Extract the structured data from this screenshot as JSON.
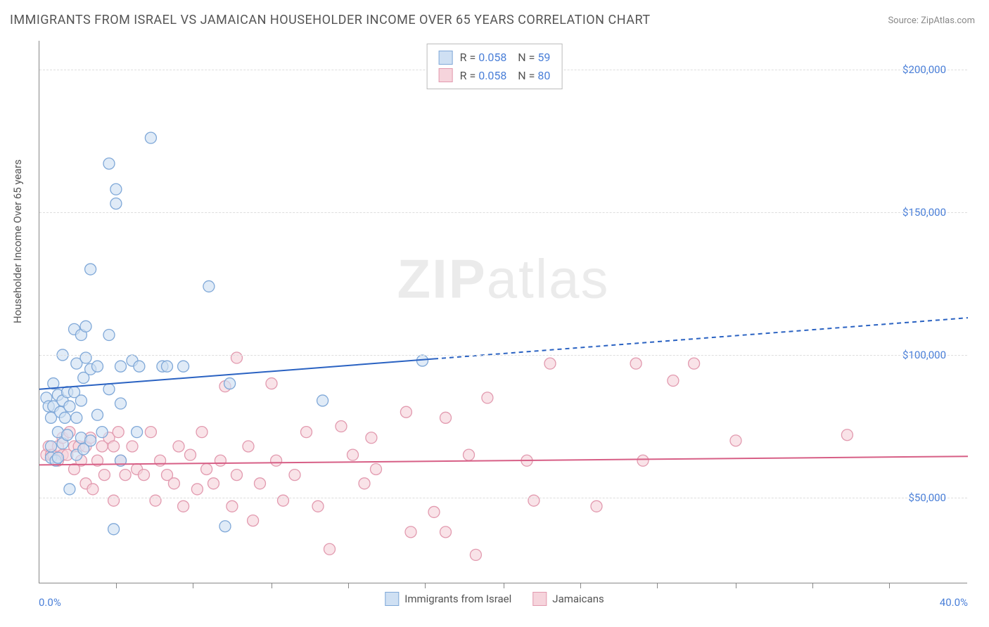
{
  "title": "IMMIGRANTS FROM ISRAEL VS JAMAICAN HOUSEHOLDER INCOME OVER 65 YEARS CORRELATION CHART",
  "source_label": "Source:",
  "source_name": "ZipAtlas.com",
  "ylabel": "Householder Income Over 65 years",
  "watermark_bold": "ZIP",
  "watermark_rest": "atlas",
  "chart": {
    "type": "scatter",
    "xlim": [
      0,
      40
    ],
    "ylim": [
      20000,
      210000
    ],
    "x_unit": "%",
    "y_prefix": "$",
    "y_ticks": [
      50000,
      100000,
      150000,
      200000
    ],
    "y_tick_labels": [
      "$50,000",
      "$100,000",
      "$150,000",
      "$200,000"
    ],
    "x_ticks_minor": [
      3.3,
      6.6,
      10,
      13.3,
      16.6,
      20,
      23.3,
      26.6,
      30,
      33.3,
      36.6
    ],
    "x_min_label": "0.0%",
    "x_max_label": "40.0%",
    "gridline_color": "#dddddd",
    "axis_color": "#888888",
    "tick_label_color": "#4a7fd8",
    "background_color": "#ffffff",
    "marker_radius": 8,
    "marker_stroke_width": 1.3,
    "series": [
      {
        "name": "Immigrants from Israel",
        "fill": "#cfe0f3",
        "stroke": "#7fa8d8",
        "fill_opacity": 0.65,
        "R": "0.058",
        "N": "59",
        "trend": {
          "y_at_x0": 88000,
          "y_at_x40": 113000,
          "solid_until_x": 17,
          "color": "#2a62c2",
          "width": 2
        },
        "points": [
          [
            0.3,
            85000
          ],
          [
            0.4,
            82000
          ],
          [
            0.5,
            64000
          ],
          [
            0.5,
            78000
          ],
          [
            0.5,
            68000
          ],
          [
            0.6,
            90000
          ],
          [
            0.6,
            82000
          ],
          [
            0.7,
            63000
          ],
          [
            0.8,
            86000
          ],
          [
            0.8,
            73000
          ],
          [
            0.8,
            64000
          ],
          [
            0.9,
            80000
          ],
          [
            1.0,
            84000
          ],
          [
            1.0,
            100000
          ],
          [
            1.0,
            69000
          ],
          [
            1.1,
            78000
          ],
          [
            1.2,
            87000
          ],
          [
            1.2,
            72000
          ],
          [
            1.3,
            53000
          ],
          [
            1.3,
            82000
          ],
          [
            1.5,
            87000
          ],
          [
            1.5,
            109000
          ],
          [
            1.6,
            65000
          ],
          [
            1.6,
            97000
          ],
          [
            1.6,
            78000
          ],
          [
            1.8,
            71000
          ],
          [
            1.8,
            107000
          ],
          [
            1.8,
            84000
          ],
          [
            1.9,
            92000
          ],
          [
            1.9,
            67000
          ],
          [
            2.0,
            110000
          ],
          [
            2.0,
            99000
          ],
          [
            2.2,
            95000
          ],
          [
            2.2,
            70000
          ],
          [
            2.2,
            130000
          ],
          [
            2.5,
            96000
          ],
          [
            2.5,
            79000
          ],
          [
            2.7,
            73000
          ],
          [
            3.0,
            88000
          ],
          [
            3.0,
            107000
          ],
          [
            3.0,
            167000
          ],
          [
            3.2,
            39000
          ],
          [
            3.3,
            158000
          ],
          [
            3.3,
            153000
          ],
          [
            3.5,
            96000
          ],
          [
            3.5,
            63000
          ],
          [
            3.5,
            83000
          ],
          [
            4.0,
            98000
          ],
          [
            4.2,
            73000
          ],
          [
            4.3,
            96000
          ],
          [
            4.8,
            176000
          ],
          [
            5.3,
            96000
          ],
          [
            5.5,
            96000
          ],
          [
            6.2,
            96000
          ],
          [
            7.3,
            124000
          ],
          [
            8.0,
            40000
          ],
          [
            8.2,
            90000
          ],
          [
            12.2,
            84000
          ],
          [
            16.5,
            98000
          ]
        ]
      },
      {
        "name": "Jamaicans",
        "fill": "#f6d4dc",
        "stroke": "#e29aaf",
        "fill_opacity": 0.65,
        "R": "0.058",
        "N": "80",
        "trend": {
          "y_at_x0": 61500,
          "y_at_x40": 64500,
          "solid_until_x": 40,
          "color": "#d75f86",
          "width": 2
        },
        "points": [
          [
            0.3,
            65000
          ],
          [
            0.4,
            68000
          ],
          [
            0.5,
            65000
          ],
          [
            0.6,
            65000
          ],
          [
            0.8,
            68000
          ],
          [
            0.8,
            63000
          ],
          [
            1.0,
            71000
          ],
          [
            1.0,
            65000
          ],
          [
            1.2,
            65000
          ],
          [
            1.3,
            73000
          ],
          [
            1.5,
            68000
          ],
          [
            1.5,
            60000
          ],
          [
            1.7,
            68000
          ],
          [
            1.8,
            63000
          ],
          [
            2.0,
            68000
          ],
          [
            2.0,
            55000
          ],
          [
            2.2,
            71000
          ],
          [
            2.3,
            53000
          ],
          [
            2.5,
            63000
          ],
          [
            2.7,
            68000
          ],
          [
            2.8,
            58000
          ],
          [
            3.0,
            71000
          ],
          [
            3.2,
            68000
          ],
          [
            3.2,
            49000
          ],
          [
            3.4,
            73000
          ],
          [
            3.5,
            63000
          ],
          [
            3.7,
            58000
          ],
          [
            4.0,
            68000
          ],
          [
            4.2,
            60000
          ],
          [
            4.5,
            58000
          ],
          [
            4.8,
            73000
          ],
          [
            5.0,
            49000
          ],
          [
            5.2,
            63000
          ],
          [
            5.5,
            58000
          ],
          [
            5.8,
            55000
          ],
          [
            6.0,
            68000
          ],
          [
            6.2,
            47000
          ],
          [
            6.5,
            65000
          ],
          [
            6.8,
            53000
          ],
          [
            7.0,
            73000
          ],
          [
            7.2,
            60000
          ],
          [
            7.5,
            55000
          ],
          [
            7.8,
            63000
          ],
          [
            8.0,
            89000
          ],
          [
            8.3,
            47000
          ],
          [
            8.5,
            58000
          ],
          [
            8.5,
            99000
          ],
          [
            9.0,
            68000
          ],
          [
            9.2,
            42000
          ],
          [
            9.5,
            55000
          ],
          [
            10.0,
            90000
          ],
          [
            10.2,
            63000
          ],
          [
            10.5,
            49000
          ],
          [
            11.0,
            58000
          ],
          [
            11.5,
            73000
          ],
          [
            12.0,
            47000
          ],
          [
            12.5,
            32000
          ],
          [
            13.0,
            75000
          ],
          [
            13.5,
            65000
          ],
          [
            14.0,
            55000
          ],
          [
            14.3,
            71000
          ],
          [
            14.5,
            60000
          ],
          [
            15.8,
            80000
          ],
          [
            16.0,
            38000
          ],
          [
            17.0,
            45000
          ],
          [
            17.5,
            78000
          ],
          [
            17.5,
            38000
          ],
          [
            18.5,
            65000
          ],
          [
            18.8,
            30000
          ],
          [
            19.3,
            85000
          ],
          [
            21.0,
            63000
          ],
          [
            21.3,
            49000
          ],
          [
            22.0,
            97000
          ],
          [
            24.0,
            47000
          ],
          [
            25.7,
            97000
          ],
          [
            26.0,
            63000
          ],
          [
            27.3,
            91000
          ],
          [
            28.2,
            97000
          ],
          [
            30.0,
            70000
          ],
          [
            34.8,
            72000
          ]
        ]
      }
    ]
  },
  "legend_r_label": "R =",
  "legend_n_label": "N ="
}
